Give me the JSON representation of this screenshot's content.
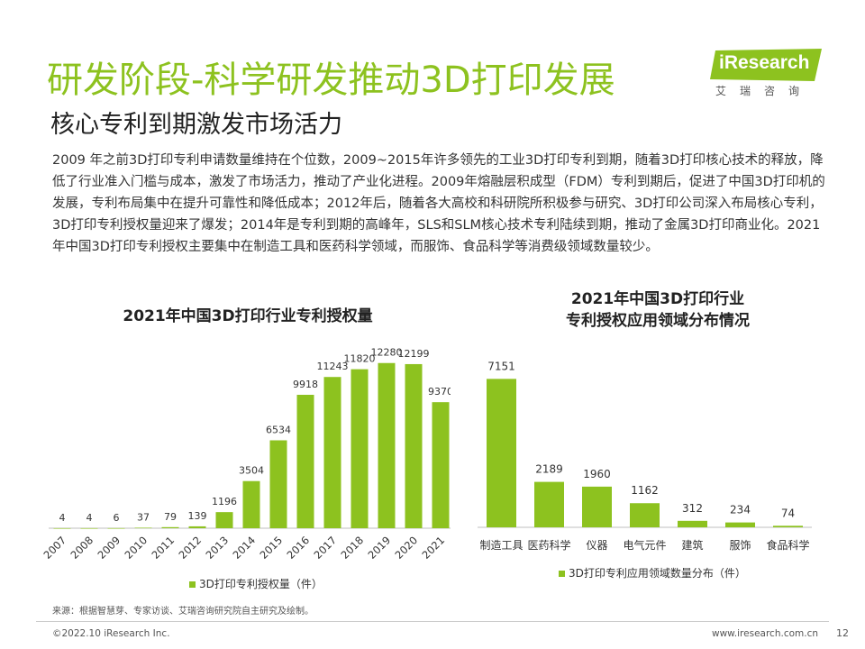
{
  "header": {
    "title": "研发阶段-科学研发推动3D打印发展",
    "subtitle": "核心专利到期激发市场活力"
  },
  "logo": {
    "brand": "iResearch",
    "cn": "艾瑞咨询"
  },
  "body_text": "2009 年之前3D打印专利申请数量维持在个位数，2009~2015年许多领先的工业3D打印专利到期，随着3D打印核心技术的释放，降低了行业准入门槛与成本，激发了市场活力，推动了产业化进程。2009年熔融层积成型（FDM）专利到期后，促进了中国3D打印机的发展，专利布局集中在提升可靠性和降低成本；2012年后，随着各大高校和科研院所积极参与研究、3D打印公司深入布局核心专利，3D打印专利授权量迎来了爆发；2014年是专利到期的高峰年，SLS和SLM核心技术专利陆续到期，推动了金属3D打印商业化。2021年中国3D打印专利授权主要集中在制造工具和医药科学领域，而服饰、食品科学等消费级领域数量较少。",
  "colors": {
    "accent": "#8dc21f",
    "text": "#333333"
  },
  "chart_data": [
    {
      "type": "bar",
      "title": "2021年中国3D打印行业专利授权量",
      "categories": [
        "2007",
        "2008",
        "2009",
        "2010",
        "2011",
        "2012",
        "2013",
        "2014",
        "2015",
        "2016",
        "2017",
        "2018",
        "2019",
        "2020",
        "2021"
      ],
      "series": [
        {
          "name": "3D打印专利授权量（件）",
          "values": [
            4,
            4,
            6,
            37,
            79,
            139,
            1196,
            3504,
            6534,
            9918,
            11243,
            11820,
            12280,
            12199,
            9370
          ]
        }
      ],
      "ylim": [
        0,
        13000
      ],
      "grid": false,
      "legend": "bottom"
    },
    {
      "type": "bar",
      "title": "2021年中国3D打印行业\n专利授权应用领域分布情况",
      "categories": [
        "制造工具",
        "医药科学",
        "仪器",
        "电气元件",
        "建筑",
        "服饰",
        "食品科学"
      ],
      "series": [
        {
          "name": "3D打印专利应用领域数量分布（件）",
          "values": [
            7151,
            2189,
            1960,
            1162,
            312,
            234,
            74
          ]
        }
      ],
      "ylim": [
        0,
        7600
      ],
      "grid": false,
      "legend": "bottom"
    }
  ],
  "source": "来源：根据智慧芽、专家访谈、艾瑞咨询研究院自主研究及绘制。",
  "footer": {
    "copyright": "©2022.10 iResearch Inc.",
    "website": "www.iresearch.com.cn",
    "page": "12"
  }
}
